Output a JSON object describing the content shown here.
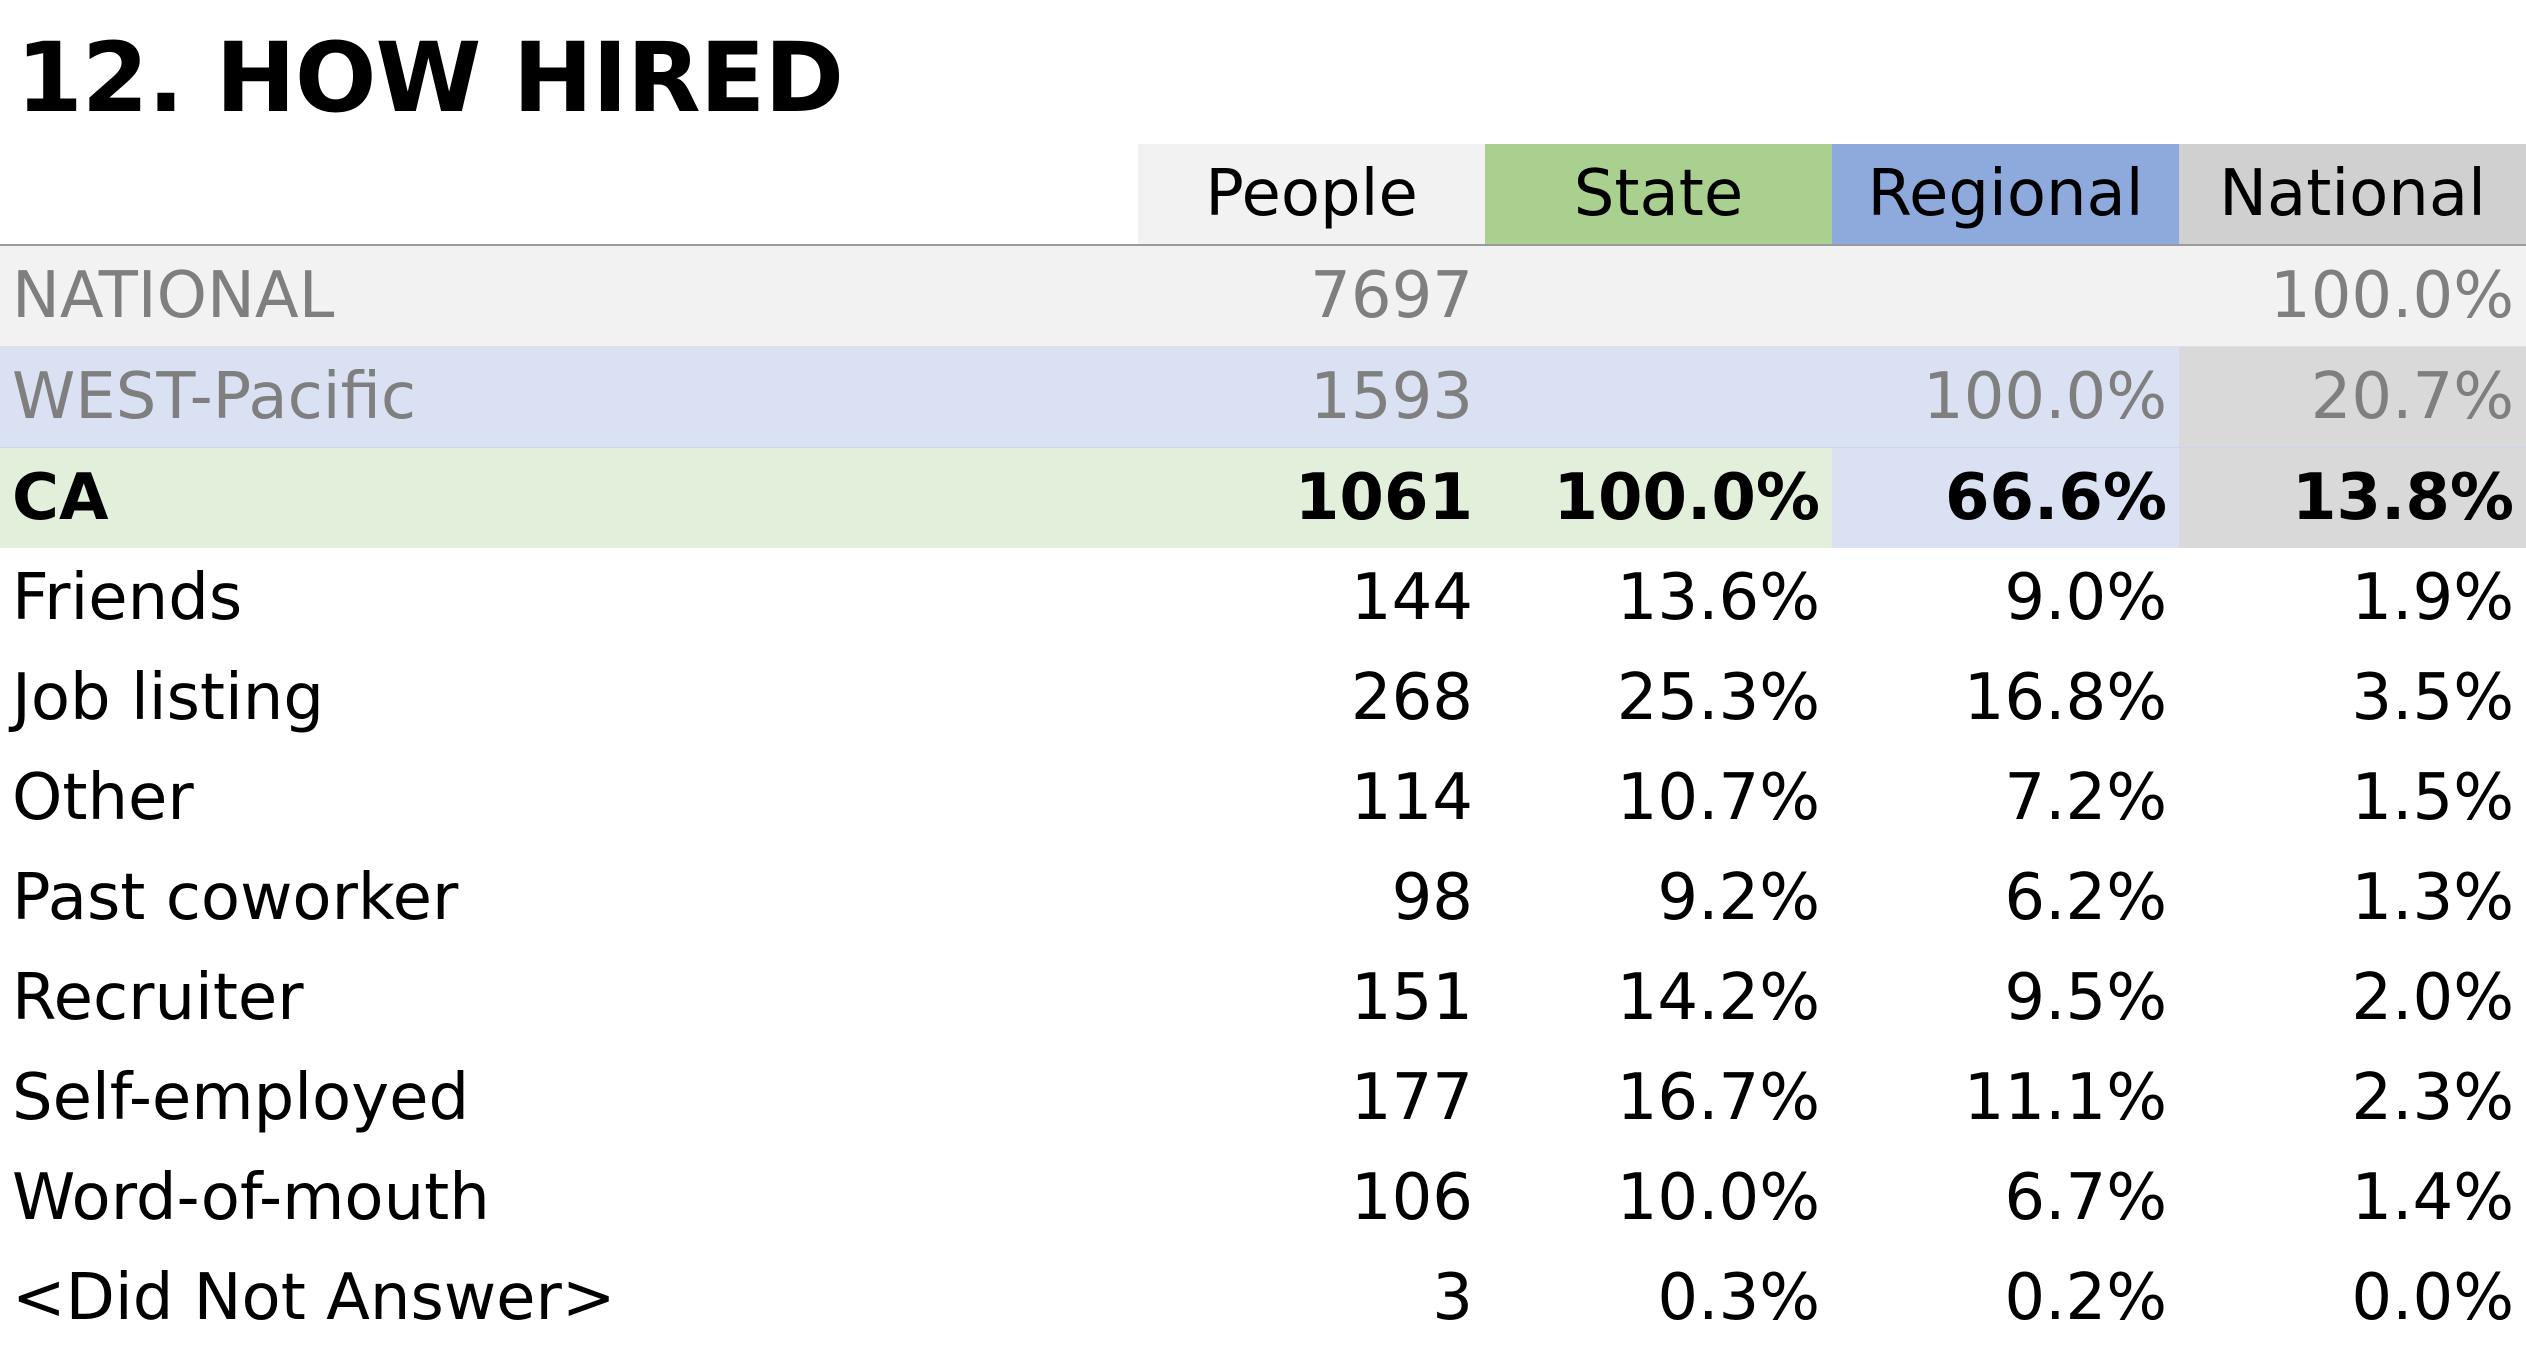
{
  "title": "12. HOW HIRED",
  "headers": [
    "People",
    "State",
    "Regional",
    "National"
  ],
  "colors": {
    "state_header": "#a9d08e",
    "regional_header": "#8ea9db",
    "national_header": "#d0d0d0",
    "people_header": "#f2f2f2",
    "national_row": "#f2f2f2",
    "region_row": "#d9e1f2",
    "state_row": "#e2efda"
  },
  "national_row": {
    "label": "NATIONAL",
    "people": "7697",
    "state": "",
    "regional": "",
    "national": "100.0%"
  },
  "region_row": {
    "label": "WEST-Pacific",
    "people": "1593",
    "state": "",
    "regional": "100.0%",
    "national": "20.7%"
  },
  "state_row": {
    "label": "CA",
    "people": "1061",
    "state": "100.0%",
    "regional": "66.6%",
    "national": "13.8%"
  },
  "rows": [
    {
      "label": "Friends",
      "people": "144",
      "state": "13.6%",
      "regional": "9.0%",
      "national": "1.9%"
    },
    {
      "label": "Job listing",
      "people": "268",
      "state": "25.3%",
      "regional": "16.8%",
      "national": "3.5%"
    },
    {
      "label": "Other",
      "people": "114",
      "state": "10.7%",
      "regional": "7.2%",
      "national": "1.5%"
    },
    {
      "label": "Past coworker",
      "people": "98",
      "state": "9.2%",
      "regional": "6.2%",
      "national": "1.3%"
    },
    {
      "label": "Recruiter",
      "people": "151",
      "state": "14.2%",
      "regional": "9.5%",
      "national": "2.0%"
    },
    {
      "label": "Self-employed",
      "people": "177",
      "state": "16.7%",
      "regional": "11.1%",
      "national": "2.3%"
    },
    {
      "label": "Word-of-mouth",
      "people": "106",
      "state": "10.0%",
      "regional": "6.7%",
      "national": "1.4%"
    },
    {
      "label": "<Did Not Answer>",
      "people": "3",
      "state": "0.3%",
      "regional": "0.2%",
      "national": "0.0%"
    }
  ],
  "chart_data": {
    "type": "table",
    "title": "12. HOW HIRED",
    "columns": [
      "People",
      "State",
      "Regional",
      "National"
    ],
    "summary_rows": [
      {
        "label": "NATIONAL",
        "people": 7697,
        "national_pct": 100.0
      },
      {
        "label": "WEST-Pacific",
        "people": 1593,
        "regional_pct": 100.0,
        "national_pct": 20.7
      },
      {
        "label": "CA",
        "people": 1061,
        "state_pct": 100.0,
        "regional_pct": 66.6,
        "national_pct": 13.8
      }
    ],
    "categories": [
      "Friends",
      "Job listing",
      "Other",
      "Past coworker",
      "Recruiter",
      "Self-employed",
      "Word-of-mouth",
      "<Did Not Answer>"
    ],
    "series": [
      {
        "name": "People",
        "values": [
          144,
          268,
          114,
          98,
          151,
          177,
          106,
          3
        ]
      },
      {
        "name": "State",
        "values": [
          13.6,
          25.3,
          10.7,
          9.2,
          14.2,
          16.7,
          10.0,
          0.3
        ]
      },
      {
        "name": "Regional",
        "values": [
          9.0,
          16.8,
          7.2,
          6.2,
          9.5,
          11.1,
          6.7,
          0.2
        ]
      },
      {
        "name": "National",
        "values": [
          1.9,
          3.5,
          1.5,
          1.3,
          2.0,
          2.3,
          1.4,
          0.0
        ]
      }
    ]
  }
}
